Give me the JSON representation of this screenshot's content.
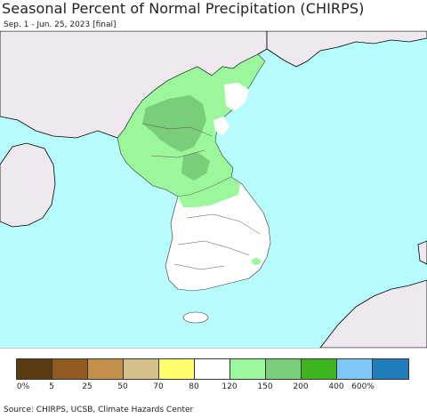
{
  "header": {
    "title": "Seasonal Percent of Normal Precipitation (CHIRPS)",
    "subtitle": "Sep. 1 - Jun. 25, 2023 [final]"
  },
  "map": {
    "ocean_color": "#b7fcfc",
    "land_color": "#eee9ee",
    "region": "Korean Peninsula"
  },
  "legend": {
    "colors": [
      "#5b3c12",
      "#8f5b21",
      "#c3904b",
      "#d4c08a",
      "#ffff6e",
      "#ffffff",
      "#9cf79c",
      "#79cf79",
      "#3cb51e",
      "#7ec8f7",
      "#1e7dba"
    ],
    "ticks": [
      "0%",
      "5",
      "25",
      "50",
      "70",
      "80",
      "120",
      "150",
      "200",
      "400",
      "600%"
    ]
  },
  "footer": {
    "source": "Source: CHIRPS, UCSB, Climate Hazards Center"
  }
}
